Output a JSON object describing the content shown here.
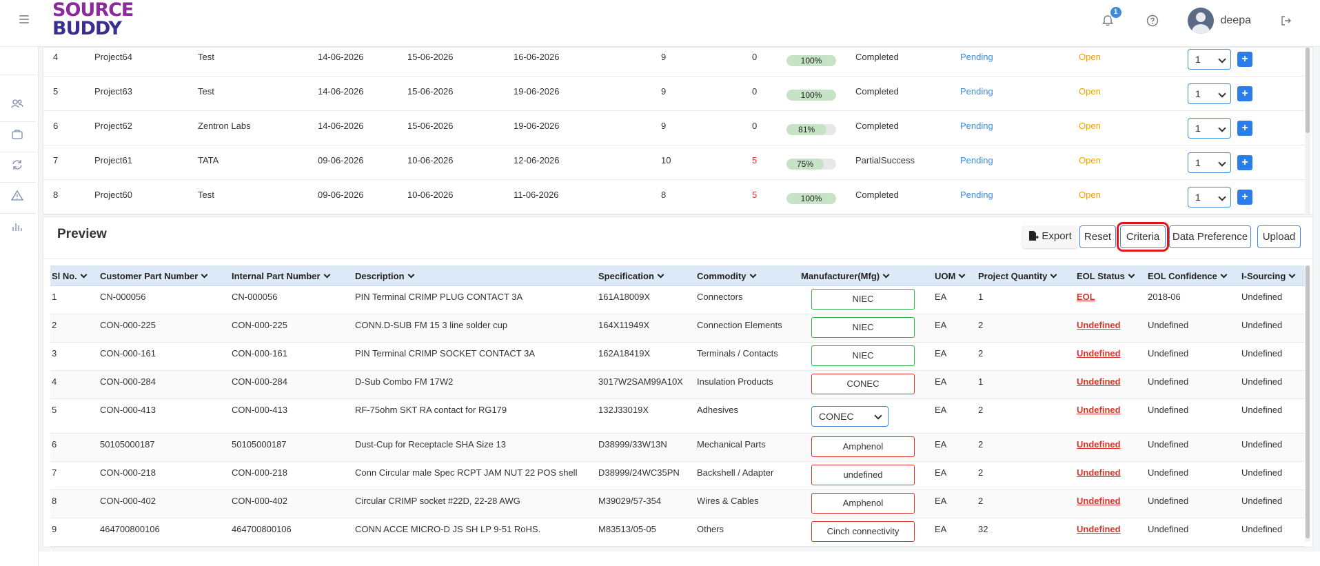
{
  "header": {
    "logo_line1": "SOURCE",
    "logo_line2": "BUDDY",
    "notification_count": "1",
    "username": "deepa"
  },
  "sidebar": {
    "items": [
      {
        "icon": "users-icon"
      },
      {
        "icon": "briefcase-icon"
      },
      {
        "icon": "refresh-icon"
      },
      {
        "icon": "warning-icon"
      },
      {
        "icon": "bar-chart-icon"
      }
    ]
  },
  "projects": {
    "rows": [
      {
        "sl": "4",
        "name": "Project64",
        "customer": "Test",
        "date1": "14-06-2026",
        "date2": "15-06-2026",
        "date3": "16-06-2026",
        "count": "9",
        "failed": "0",
        "progress_label": "100%",
        "progress_fraction": 1.0,
        "status": "Completed",
        "review": "Pending",
        "state": "Open",
        "qty": "1"
      },
      {
        "sl": "5",
        "name": "Project63",
        "customer": "Test",
        "date1": "14-06-2026",
        "date2": "15-06-2026",
        "date3": "19-06-2026",
        "count": "9",
        "failed": "0",
        "progress_label": "100%",
        "progress_fraction": 1.0,
        "status": "Completed",
        "review": "Pending",
        "state": "Open",
        "qty": "1"
      },
      {
        "sl": "6",
        "name": "Project62",
        "customer": "Zentron Labs",
        "date1": "14-06-2026",
        "date2": "15-06-2026",
        "date3": "19-06-2026",
        "count": "9",
        "failed": "0",
        "progress_label": "81%",
        "progress_fraction": 0.81,
        "status": "Completed",
        "review": "Pending",
        "state": "Open",
        "qty": "1"
      },
      {
        "sl": "7",
        "name": "Project61",
        "customer": "TATA",
        "date1": "09-06-2026",
        "date2": "10-06-2026",
        "date3": "12-06-2026",
        "count": "10",
        "failed": "5",
        "progress_label": "75%",
        "progress_fraction": 0.75,
        "status": "PartialSuccess",
        "review": "Pending",
        "state": "Open",
        "qty": "1"
      },
      {
        "sl": "8",
        "name": "Project60",
        "customer": "Test",
        "date1": "09-06-2026",
        "date2": "10-06-2026",
        "date3": "11-06-2026",
        "count": "8",
        "failed": "5",
        "progress_label": "100%",
        "progress_fraction": 1.0,
        "status": "Completed",
        "review": "Pending",
        "state": "Open",
        "qty": "1"
      }
    ],
    "plus_label": "+"
  },
  "preview": {
    "title": "Preview",
    "buttons": {
      "export": "Export",
      "reset": "Reset",
      "criteria": "Criteria",
      "data_preference": "Data Preference",
      "upload": "Upload"
    },
    "columns": [
      "Sl No.",
      "Customer Part Number",
      "Internal Part Number",
      "Description",
      "Specification",
      "Commodity",
      "Manufacturer(Mfg)",
      "UOM",
      "Project Quantity",
      "EOL Status",
      "EOL Confidence",
      "I-Sourcing"
    ],
    "rows": [
      {
        "sl": "1",
        "cpn": "CN-000056",
        "ipn": "CN-000056",
        "desc": "PIN Terminal CRIMP PLUG CONTACT 3A",
        "spec": "161A18009X",
        "commodity": "Connectors",
        "mfg": "NIEC",
        "mfg_state": "valid",
        "uom": "EA",
        "qty": "1",
        "eol": "EOL",
        "conf": "2018-06",
        "isrc": "Undefined"
      },
      {
        "sl": "2",
        "cpn": "CON-000-225",
        "ipn": "CON-000-225",
        "desc": "CONN.D-SUB FM 15 3 line solder cup",
        "spec": "164X11949X",
        "commodity": "Connection Elements",
        "mfg": "NIEC",
        "mfg_state": "valid",
        "uom": "EA",
        "qty": "2",
        "eol": "Undefined",
        "conf": "Undefined",
        "isrc": "Undefined"
      },
      {
        "sl": "3",
        "cpn": "CON-000-161",
        "ipn": "CON-000-161",
        "desc": "PIN Terminal CRIMP SOCKET CONTACT 3A",
        "spec": "162A18419X",
        "commodity": "Terminals / Contacts",
        "mfg": "NIEC",
        "mfg_state": "valid",
        "uom": "EA",
        "qty": "2",
        "eol": "Undefined",
        "conf": "Undefined",
        "isrc": "Undefined"
      },
      {
        "sl": "4",
        "cpn": "CON-000-284",
        "ipn": "CON-000-284",
        "desc": "D-Sub Combo FM 17W2",
        "spec": "3017W2SAM99A10X",
        "commodity": "Insulation Products",
        "mfg": "CONEC",
        "mfg_state": "invalid",
        "uom": "EA",
        "qty": "1",
        "eol": "Undefined",
        "conf": "Undefined",
        "isrc": "Undefined"
      },
      {
        "sl": "5",
        "cpn": "CON-000-413",
        "ipn": "CON-000-413",
        "desc": "RF-75ohm SKT RA contact for RG179",
        "spec": "132J33019X",
        "commodity": "Adhesives",
        "mfg": "CONEC",
        "mfg_state": "select",
        "uom": "EA",
        "qty": "2",
        "eol": "Undefined",
        "conf": "Undefined",
        "isrc": "Undefined"
      },
      {
        "sl": "6",
        "cpn": "50105000187",
        "ipn": "50105000187",
        "desc": "Dust-Cup for Receptacle SHA Size 13",
        "spec": "D38999/33W13N",
        "commodity": "Mechanical Parts",
        "mfg": "Amphenol",
        "mfg_state": "invalid",
        "uom": "EA",
        "qty": "2",
        "eol": "Undefined",
        "conf": "Undefined",
        "isrc": "Undefined"
      },
      {
        "sl": "7",
        "cpn": "CON-000-218",
        "ipn": "CON-000-218",
        "desc": "Conn Circular male Spec RCPT JAM NUT 22 POS shell",
        "spec": "D38999/24WC35PN",
        "commodity": "Backshell / Adapter",
        "mfg": "undefined",
        "mfg_state": "invalid",
        "uom": "EA",
        "qty": "2",
        "eol": "Undefined",
        "conf": "Undefined",
        "isrc": "Undefined"
      },
      {
        "sl": "8",
        "cpn": "CON-000-402",
        "ipn": "CON-000-402",
        "desc": "Circular CRIMP socket #22D, 22-28 AWG",
        "spec": "M39029/57-354",
        "commodity": "Wires & Cables",
        "mfg": "Amphenol",
        "mfg_state": "invalid",
        "uom": "EA",
        "qty": "2",
        "eol": "Undefined",
        "conf": "Undefined",
        "isrc": "Undefined"
      },
      {
        "sl": "9",
        "cpn": "464700800106",
        "ipn": "464700800106",
        "desc": "CONN ACCE MICRO-D JS SH LP 9-51 RoHS.",
        "spec": "M83513/05-05",
        "commodity": "Others",
        "mfg": "Cinch connectivity",
        "mfg_state": "invalid",
        "uom": "EA",
        "qty": "32",
        "eol": "Undefined",
        "conf": "Undefined",
        "isrc": "Undefined"
      }
    ]
  },
  "colors": {
    "link_blue": "#3d8bd9",
    "open_orange": "#f0a000",
    "failed_red": "#d9352c",
    "header_blue": "#dceaf8",
    "valid_green": "#2db34a"
  }
}
